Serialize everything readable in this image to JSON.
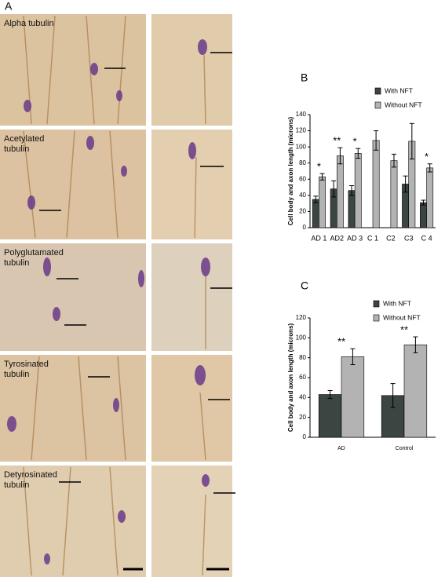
{
  "micrographs": {
    "panel": "A",
    "labels": [
      "Alpha tubulin",
      "Acetylated tubulin",
      "Polyglutamated tubulin",
      "Tyrosinated tubulin",
      "Detyrosinated tubulin"
    ]
  },
  "chart_data": [
    {
      "type": "bar",
      "panel": "B",
      "y_label": "Cell body and axon length  (microns)",
      "categories": [
        "AD 1",
        "AD2",
        "AD 3",
        "C 1",
        "C2",
        "C3",
        "C 4"
      ],
      "series": [
        {
          "name": "With NFT",
          "color": "#3b4542",
          "values": [
            35,
            48,
            46,
            null,
            null,
            54,
            31
          ],
          "errors": [
            4,
            10,
            6,
            null,
            null,
            10,
            3
          ]
        },
        {
          "name": "Without NFT",
          "color": "#b3b3b3",
          "values": [
            63,
            89,
            92,
            108,
            83,
            107,
            74
          ],
          "errors": [
            4,
            10,
            6,
            12,
            8,
            22,
            5
          ]
        }
      ],
      "annotations": [
        "*",
        "**",
        "*",
        null,
        null,
        null,
        "*"
      ],
      "ylim": [
        0,
        140
      ],
      "yticks": [
        0,
        20,
        40,
        60,
        80,
        100,
        120,
        140
      ]
    },
    {
      "type": "bar",
      "panel": "C",
      "y_label": "Cell body and axon length  (microns)",
      "categories": [
        "AD",
        "Control"
      ],
      "series": [
        {
          "name": "With NFT",
          "color": "#3b4542",
          "values": [
            43,
            42
          ],
          "errors": [
            4,
            12
          ]
        },
        {
          "name": "Without NFT",
          "color": "#b3b3b3",
          "values": [
            81,
            93
          ],
          "errors": [
            8,
            8
          ]
        }
      ],
      "annotations": [
        "**",
        "**"
      ],
      "ylim": [
        0,
        120
      ],
      "yticks": [
        0,
        20,
        40,
        60,
        80,
        100,
        120
      ]
    }
  ]
}
